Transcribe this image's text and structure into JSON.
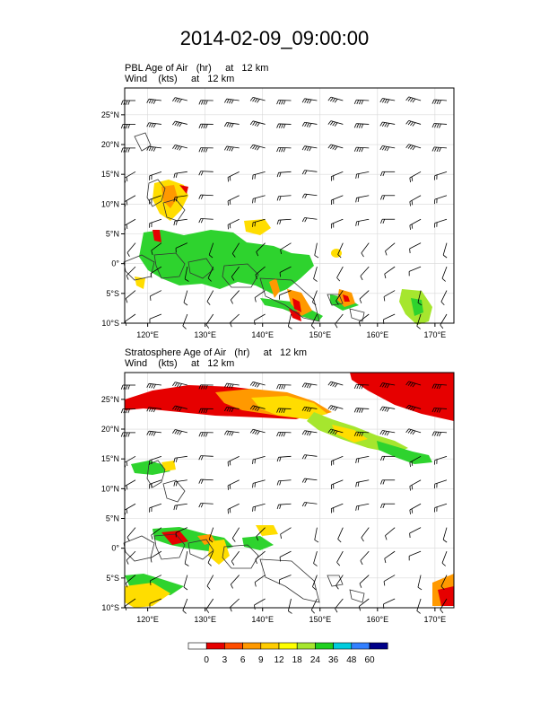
{
  "title": "2014-02-09_09:00:00",
  "panels": [
    {
      "field_line": "PBL Age of Air   (hr)     at   12 km",
      "wind_line": "Wind    (kts)     at   12 km"
    },
    {
      "field_line": "Stratosphere Age of Air   (hr)     at   12 km",
      "wind_line": "Wind    (kts)     at   12 km"
    }
  ],
  "lon_ticks": [
    "120°E",
    "130°E",
    "140°E",
    "150°E",
    "160°E",
    "170°E"
  ],
  "lat_ticks": [
    "25°N",
    "20°N",
    "15°N",
    "10°N",
    "5°N",
    "0°",
    "5°S",
    "10°S"
  ],
  "colorbar": {
    "labels": [
      "0",
      "3",
      "6",
      "9",
      "12",
      "18",
      "24",
      "36",
      "48",
      "60"
    ],
    "colors": [
      "#ffffff",
      "#e60000",
      "#ff4d00",
      "#ff9900",
      "#ffcc00",
      "#ffff00",
      "#a6e62e",
      "#1fd01f",
      "#00ccdd",
      "#3380ff",
      "#000088"
    ]
  },
  "palette": {
    "red": "#e60000",
    "orange": "#ff9900",
    "yellow": "#ffdd00",
    "green": "#2ed32e",
    "lime": "#a6e62e"
  }
}
